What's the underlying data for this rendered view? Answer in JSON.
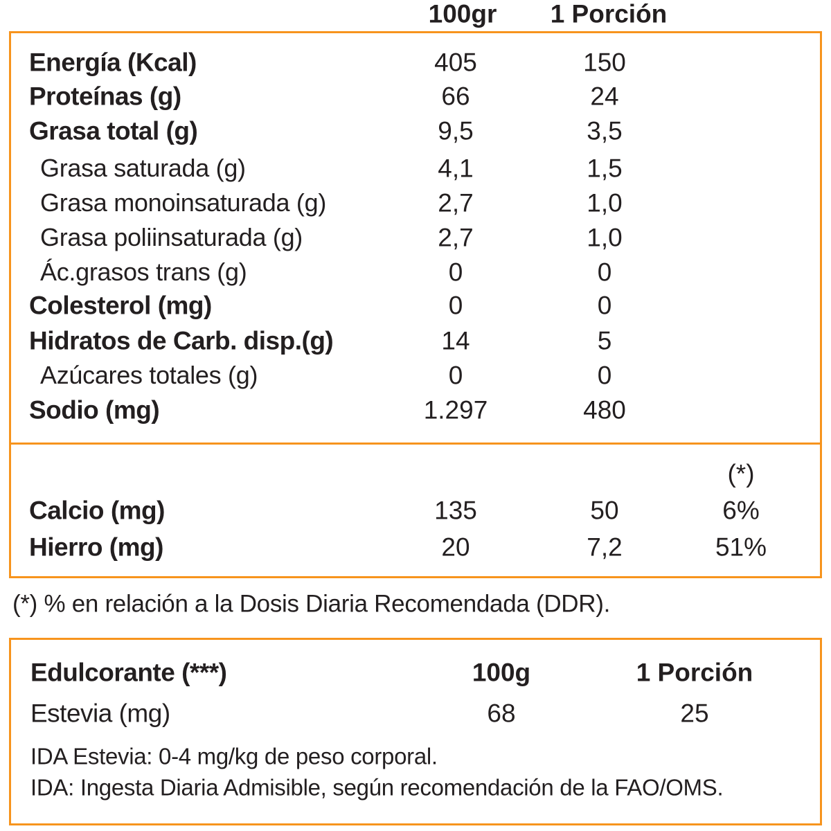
{
  "main_table": {
    "headers": [
      "100gr",
      "1 Porción"
    ],
    "rows": [
      {
        "label": "Energía (Kcal)",
        "v100": "405",
        "portion": "150",
        "bold": true
      },
      {
        "label": "Proteínas (g)",
        "v100": "66",
        "portion": "24",
        "bold": true
      },
      {
        "label": "Grasa total (g)",
        "v100": "9,5",
        "portion": "3,5",
        "bold": true
      },
      {
        "label": "Grasa saturada (g)",
        "v100": "4,1",
        "portion": "1,5",
        "bold": false
      },
      {
        "label": "Grasa monoinsaturada (g)",
        "v100": "2,7",
        "portion": "1,0",
        "bold": false
      },
      {
        "label": "Grasa poliinsaturada (g)",
        "v100": "2,7",
        "portion": "1,0",
        "bold": false
      },
      {
        "label": "Ác.grasos trans (g)",
        "v100": "0",
        "portion": "0",
        "bold": false
      },
      {
        "label": "Colesterol (mg)",
        "v100": "0",
        "portion": "0",
        "bold": true
      },
      {
        "label": "Hidratos de Carb. disp.(g)",
        "v100": "14",
        "portion": "5",
        "bold": true
      },
      {
        "label": "Azúcares totales (g)",
        "v100": "0",
        "portion": "0",
        "bold": false
      },
      {
        "label": "Sodio (mg)",
        "v100": "1.297",
        "portion": "480",
        "bold": true
      }
    ]
  },
  "minerals": {
    "ddr_header": "(*)",
    "rows": [
      {
        "label": "Calcio (mg)",
        "v100": "135",
        "portion": "50",
        "ddr": "6%"
      },
      {
        "label": "Hierro (mg)",
        "v100": "20",
        "portion": "7,2",
        "ddr": "51%"
      }
    ]
  },
  "footnote": "(*) % en relación a la Dosis Diaria Recomendada (DDR).",
  "sweetener": {
    "title": "Edulcorante (***)",
    "headers": [
      "100g",
      "1 Porción"
    ],
    "row": {
      "label": "Estevia (mg)",
      "v100": "68",
      "portion": "25"
    },
    "notes": [
      "IDA Estevia: 0-4 mg/kg de peso corporal.",
      "IDA: Ingesta Diaria Admisible, según recomendación de la FAO/OMS."
    ]
  },
  "colors": {
    "border": "#f7941d",
    "text": "#231f20"
  }
}
